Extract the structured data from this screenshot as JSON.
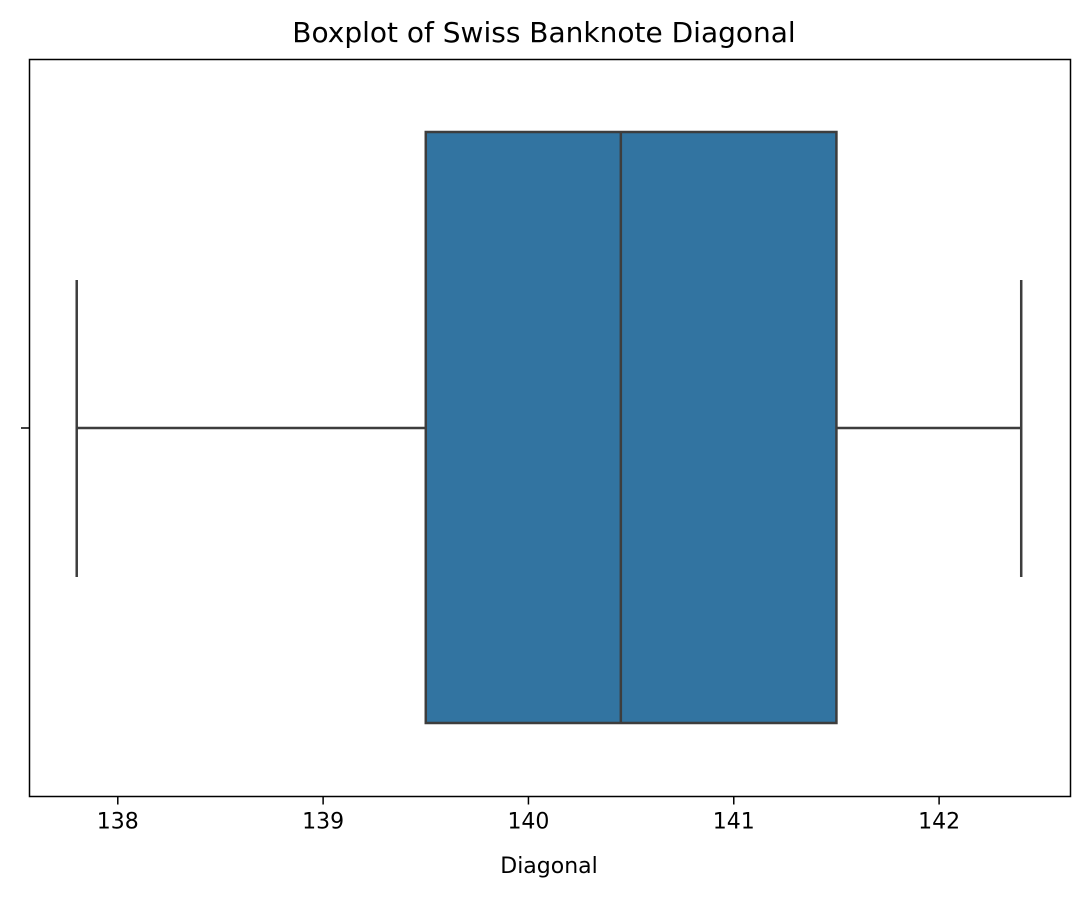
{
  "chart_data": {
    "type": "box",
    "title": "Boxplot of Swiss Banknote Diagonal",
    "xlabel": "Diagonal",
    "ylabel": "",
    "xlim": [
      137.57,
      142.64
    ],
    "xticks": [
      138,
      139,
      140,
      141,
      142
    ],
    "orientation": "horizontal",
    "series": [
      {
        "whisker_low": 137.8,
        "q1": 139.5,
        "median": 140.45,
        "q3": 141.5,
        "whisker_high": 142.4
      }
    ],
    "colors": {
      "box_fill": "#3274a1",
      "line": "#3d3d3d",
      "frame": "#000000"
    },
    "grid": false,
    "legend": "none"
  }
}
